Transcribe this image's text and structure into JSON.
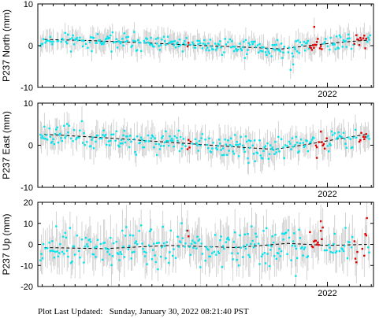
{
  "chart_data": [
    {
      "type": "scatter",
      "ylabel": "P237 North (mm)",
      "ylim": [
        -10,
        10
      ],
      "yticks": [
        -10,
        0,
        10
      ],
      "xlim": [
        2019.8,
        2022.35
      ],
      "xticks": [
        2022
      ],
      "xtick_labels": [
        "2022"
      ],
      "show_xtick_labels": true,
      "grid": false,
      "series": [
        {
          "trend": [
            [
              2019.85,
              1.5
            ],
            [
              2020.2,
              1.2
            ],
            [
              2020.6,
              0.7
            ],
            [
              2021.0,
              0.1
            ],
            [
              2021.4,
              -0.4
            ],
            [
              2021.65,
              -0.8
            ],
            [
              2021.85,
              0.0
            ],
            [
              2022.1,
              0.8
            ],
            [
              2022.3,
              1.3
            ]
          ],
          "noise": 1.0,
          "err": 2.2,
          "seed": 11,
          "red_ranges": [
            [
              2020.93,
              2020.95
            ],
            [
              2021.86,
              2021.96
            ],
            [
              2022.2,
              2022.3
            ]
          ],
          "outliers": [
            [
              2021.72,
              -5.8
            ],
            [
              2021.74,
              -4.5
            ],
            [
              2020.9,
              -1.4
            ],
            [
              2021.9,
              4.5
            ]
          ]
        }
      ]
    },
    {
      "type": "scatter",
      "ylabel": "P237 East (mm)",
      "ylim": [
        -10,
        10
      ],
      "yticks": [
        -10,
        0,
        10
      ],
      "xlim": [
        2019.8,
        2022.35
      ],
      "xticks": [
        2022
      ],
      "xtick_labels": [
        "2022"
      ],
      "show_xtick_labels": true,
      "grid": false,
      "series": [
        {
          "trend": [
            [
              2019.85,
              2.6
            ],
            [
              2020.3,
              1.8
            ],
            [
              2020.8,
              0.7
            ],
            [
              2021.3,
              -0.4
            ],
            [
              2021.6,
              -1.0
            ],
            [
              2021.85,
              0.2
            ],
            [
              2022.1,
              1.6
            ],
            [
              2022.3,
              2.6
            ]
          ],
          "noise": 1.3,
          "err": 2.8,
          "seed": 23,
          "red_ranges": [
            [
              2020.93,
              2020.96
            ],
            [
              2021.9,
              2022.0
            ],
            [
              2022.22,
              2022.3
            ]
          ],
          "outliers": [
            [
              2021.4,
              -4.2
            ],
            [
              2021.45,
              -3.8
            ],
            [
              2021.92,
              -3.0
            ]
          ]
        }
      ]
    },
    {
      "type": "scatter",
      "ylabel": "P237 Up (mm)",
      "ylim": [
        -20,
        20
      ],
      "yticks": [
        -20,
        -10,
        0,
        10,
        20
      ],
      "xlim": [
        2019.8,
        2022.35
      ],
      "xticks": [
        2022
      ],
      "xtick_labels": [
        "2022"
      ],
      "show_xtick_labels": true,
      "grid": false,
      "series": [
        {
          "trend": [
            [
              2019.85,
              -1.5
            ],
            [
              2020.3,
              -2.0
            ],
            [
              2020.8,
              -0.5
            ],
            [
              2021.3,
              -1.5
            ],
            [
              2021.7,
              0.5
            ],
            [
              2022.0,
              -0.5
            ],
            [
              2022.3,
              0.0
            ]
          ],
          "noise": 4.5,
          "err": 8.0,
          "seed": 37,
          "red_ranges": [
            [
              2020.93,
              2020.95
            ],
            [
              2021.86,
              2021.97
            ],
            [
              2022.2,
              2022.3
            ]
          ],
          "outliers": [
            [
              2022.3,
              12.5
            ],
            [
              2021.95,
              11.0
            ],
            [
              2021.76,
              -15.0
            ]
          ]
        }
      ]
    }
  ],
  "footer": {
    "label": "Plot Last Updated:",
    "timestamp": "Sunday, January 30, 2022 08:21:40 PST"
  },
  "colors": {
    "points": "#00e5ee",
    "recent_points": "#e00000",
    "error_bars": "#c8c8c8",
    "trend": "#000000"
  }
}
